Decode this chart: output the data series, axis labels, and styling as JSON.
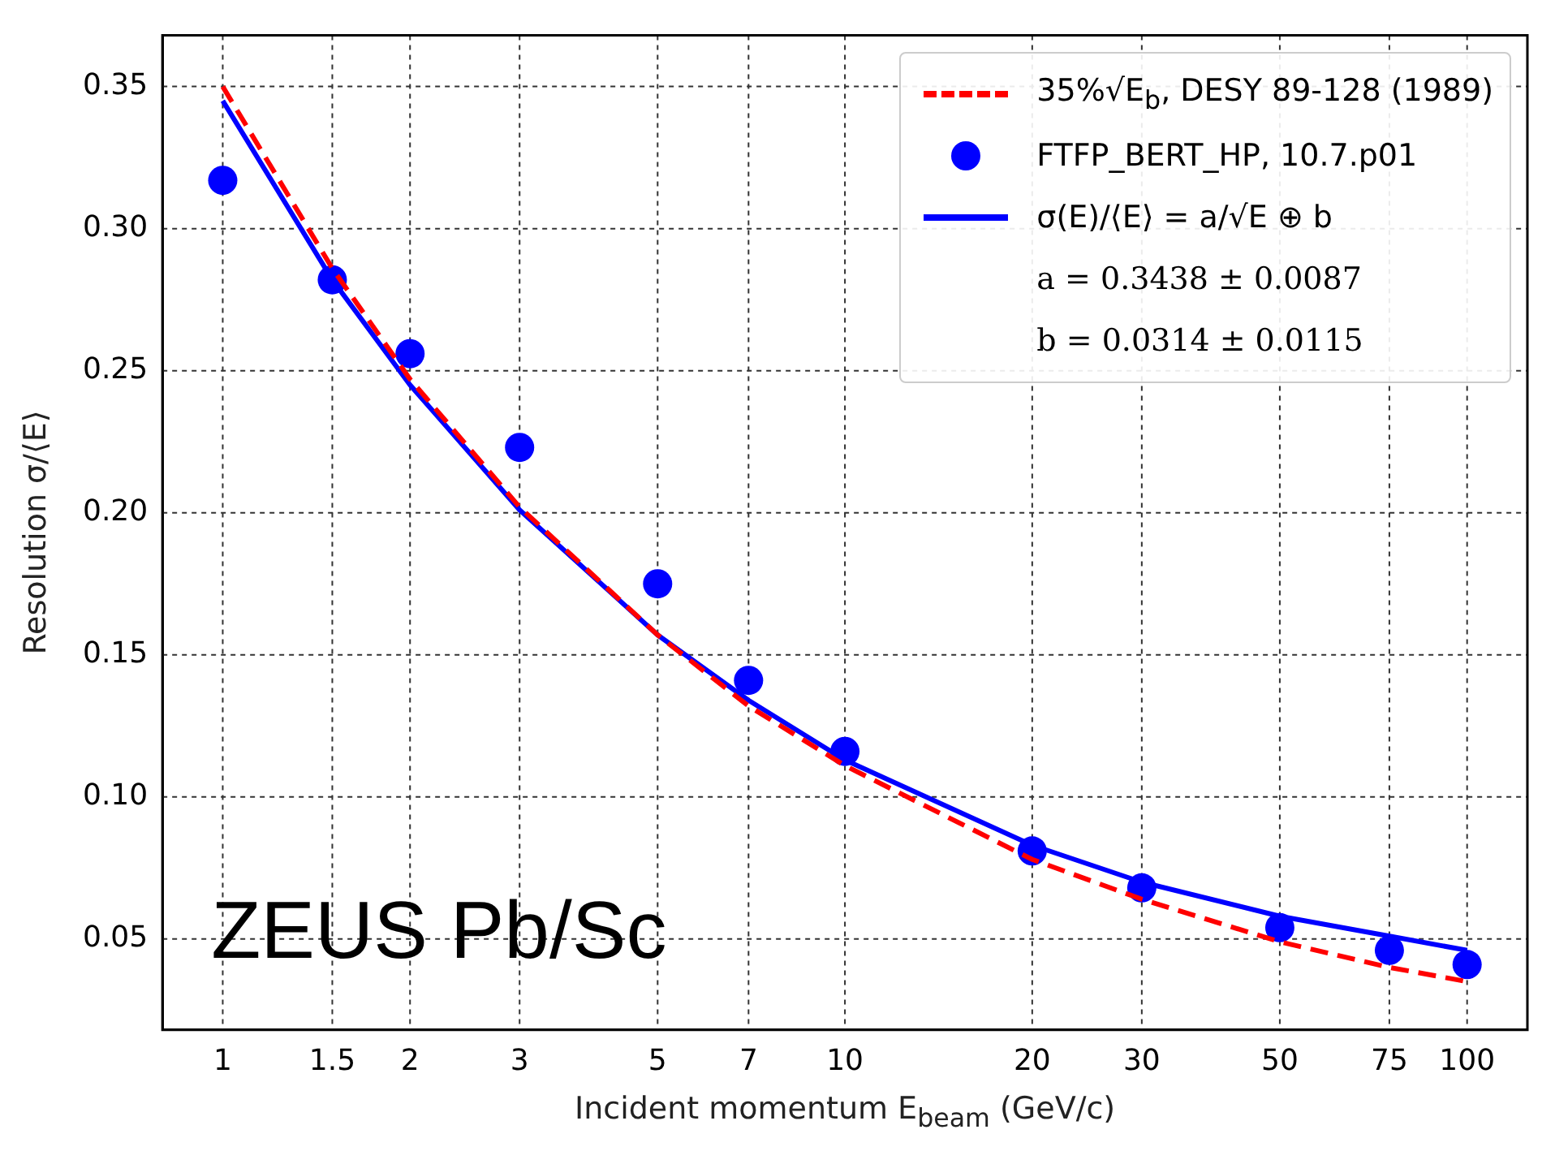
{
  "chart_data": {
    "type": "scatter",
    "xlabel": "Incident momentum E$_{beam}$ (GeV/c)",
    "ylabel": "Resolution σ/⟨E⟩",
    "log": "x",
    "grid": true,
    "legend": "top right",
    "xlim": [
      0.8,
      125
    ],
    "xticks": [
      1,
      1.5,
      2,
      3,
      5,
      7,
      10,
      20,
      30,
      50,
      75,
      100
    ],
    "ylim": [
      0.018,
      0.368
    ],
    "yticks": [
      0.05,
      {
        "value": 0.1,
        "label": "0.10"
      },
      0.15,
      {
        "value": 0.2,
        "label": "0.20"
      },
      0.25,
      {
        "value": 0.3,
        "label": "0.30"
      },
      0.35
    ],
    "series": [
      {
        "name": "35%√E$_{b}$, DESY 89-128 (1989)",
        "type": "line",
        "color": "#ff0000",
        "line_style": "dashed",
        "marker": "none",
        "x": [
          1,
          1.5,
          2,
          3,
          5,
          7,
          10,
          20,
          30,
          50,
          75,
          100
        ],
        "values": [
          0.35,
          0.286,
          0.247,
          0.202,
          0.157,
          0.132,
          0.111,
          0.078,
          0.064,
          0.049,
          0.04,
          0.035
        ]
      },
      {
        "name": "FTFP_BERT_HP, 10.7.p01",
        "type": "scatter",
        "color": "#0000ff",
        "marker": "circle",
        "x": [
          1,
          1.5,
          2,
          3,
          5,
          7,
          10,
          20,
          30,
          50,
          75,
          100
        ],
        "values": [
          0.317,
          0.282,
          0.256,
          0.223,
          0.175,
          0.141,
          0.116,
          0.081,
          0.068,
          0.054,
          0.046,
          0.041
        ]
      },
      {
        "name": "σ(E)/⟨E⟩ = a/√E ⊕ b",
        "type": "line",
        "color": "#0000ff",
        "line_style": "solid",
        "marker": "none",
        "x": [
          1,
          1.5,
          2,
          3,
          5,
          7,
          10,
          20,
          30,
          50,
          75,
          100
        ],
        "values": [
          0.345,
          0.282,
          0.245,
          0.201,
          0.157,
          0.134,
          0.113,
          0.083,
          0.07,
          0.058,
          0.051,
          0.046
        ]
      }
    ],
    "annotations": [
      "a = 0.3438 ± 0.0087",
      "b = 0.0314 ± 0.0115",
      "ZEUS Pb/Sc"
    ]
  }
}
